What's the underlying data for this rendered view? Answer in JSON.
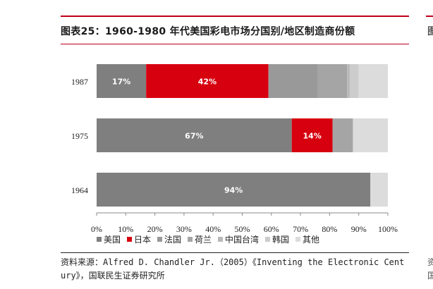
{
  "header": {
    "title": "图表25：1960-1980 年代美国彩电市场分国别/地区制造商份额",
    "side_fragment": "图",
    "side_fragment_bottom": "资\n国"
  },
  "source": {
    "text": "资料来源：Alfred D. Chandler Jr.（2005）《Inventing the Electronic Century》，国联民生证券研究所"
  },
  "colors": {
    "accent": "#c0001a"
  },
  "chart_data": {
    "type": "bar",
    "orientation": "horizontal",
    "stacked": true,
    "categories": [
      "1987",
      "1975",
      "1964"
    ],
    "xlim": [
      0,
      100
    ],
    "xticks": [
      "0%",
      "10%",
      "20%",
      "30%",
      "40%",
      "50%",
      "60%",
      "70%",
      "80%",
      "90%",
      "100%"
    ],
    "grid": false,
    "legend_position": "bottom",
    "series": [
      {
        "name": "美国",
        "color": "#7f7f7f",
        "values": [
          17,
          67,
          94
        ],
        "labels": [
          "17%",
          "67%",
          "94%"
        ]
      },
      {
        "name": "日本",
        "color": "#d7000f",
        "values": [
          42,
          14,
          0
        ],
        "labels": [
          "42%",
          "14%",
          ""
        ]
      },
      {
        "name": "法国",
        "color": "#999999",
        "values": [
          17,
          0,
          0
        ],
        "labels": [
          "",
          "",
          ""
        ]
      },
      {
        "name": "荷兰",
        "color": "#a5a5a5",
        "values": [
          10,
          7,
          0
        ],
        "labels": [
          "",
          "",
          ""
        ]
      },
      {
        "name": "中国台湾",
        "color": "#b9b9b9",
        "values": [
          1,
          0,
          0
        ],
        "labels": [
          "",
          "",
          ""
        ]
      },
      {
        "name": "韩国",
        "color": "#cccccc",
        "values": [
          3,
          0,
          0
        ],
        "labels": [
          "",
          "",
          ""
        ]
      },
      {
        "name": "其他",
        "color": "#dcdcdc",
        "values": [
          10,
          12,
          6
        ],
        "labels": [
          "",
          "",
          ""
        ]
      }
    ]
  }
}
